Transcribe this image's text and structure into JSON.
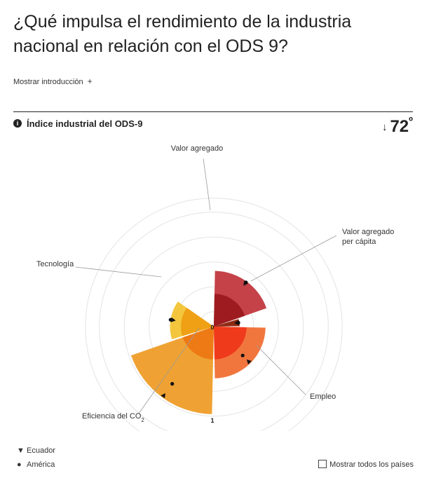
{
  "header": {
    "title": "¿Qué impulsa el rendimiento de la industria nacional en relación con el ODS 9?",
    "intro_toggle": "Mostrar introducción",
    "intro_plus": "+",
    "index_icon": "i",
    "index_label": "Índice industrial del ODS-9",
    "rank_arrow": "↓",
    "rank_value": "72",
    "rank_suffix": "º"
  },
  "chart_data": {
    "type": "polar-bar",
    "center_label": "0",
    "scale_label": "1",
    "rmax": 1,
    "categories": [
      {
        "label": "Valor agregado",
        "start_deg": 0,
        "end_deg": 72,
        "country": 0.56,
        "america": 0.55,
        "color": "#c0323a",
        "inner_color": "#9e1b20"
      },
      {
        "label": "Valor agregado per cápita",
        "start_deg": 72,
        "end_deg": 90,
        "country": 0.26,
        "america": 0.25,
        "color": "#b5461f",
        "inner_color": "#8f2a15"
      },
      {
        "label": "Empleo",
        "start_deg": 90,
        "end_deg": 180,
        "country": 0.52,
        "america": 0.41,
        "color": "#f06a2e",
        "inner_color": "#f03a1c"
      },
      {
        "label": "Eficiencia del CO2",
        "start_deg": 180,
        "end_deg": 252,
        "country": 0.88,
        "america": 0.71,
        "color": "#ee9a22",
        "inner_color": "#ee7a15"
      },
      {
        "label": "Tecnología",
        "start_deg": 252,
        "end_deg": 306,
        "country": 0.44,
        "america": 0.44,
        "color": "#f2c12e",
        "inner_color": "#f0a015"
      }
    ],
    "legend": [
      {
        "symbol": "▼",
        "name": "Ecuador"
      },
      {
        "symbol": "●",
        "name": "América"
      }
    ]
  },
  "controls": {
    "show_all_label": "Mostrar todos los países"
  }
}
